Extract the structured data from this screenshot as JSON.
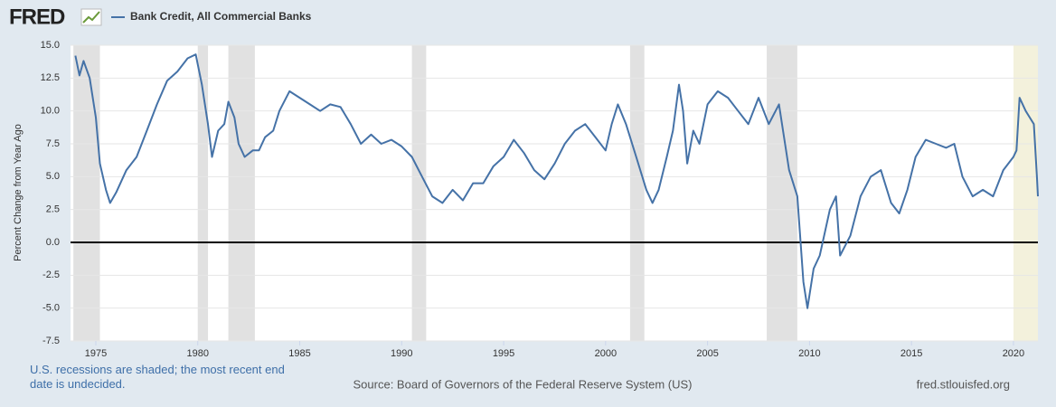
{
  "chart_data": {
    "type": "line",
    "logo": "FRED",
    "title": "Bank Credit, All Commercial Banks",
    "ylabel": "Percent Change from Year Ago",
    "note": "U.S. recessions are shaded; the most recent end date is undecided.",
    "source": "Source: Board of Governors of the Federal Reserve System (US)",
    "site": "fred.stlouisfed.org",
    "x": [
      1974.0,
      1974.2,
      1974.4,
      1974.7,
      1975.0,
      1975.2,
      1975.5,
      1975.7,
      1976.0,
      1976.5,
      1977.0,
      1977.5,
      1978.0,
      1978.5,
      1979.0,
      1979.5,
      1979.9,
      1980.2,
      1980.5,
      1980.7,
      1981.0,
      1981.3,
      1981.5,
      1981.8,
      1982.0,
      1982.3,
      1982.7,
      1983.0,
      1983.3,
      1983.7,
      1984.0,
      1984.5,
      1985.0,
      1985.5,
      1986.0,
      1986.5,
      1987.0,
      1987.5,
      1988.0,
      1988.5,
      1989.0,
      1989.5,
      1990.0,
      1990.5,
      1991.0,
      1991.5,
      1992.0,
      1992.5,
      1993.0,
      1993.5,
      1994.0,
      1994.5,
      1995.0,
      1995.5,
      1996.0,
      1996.5,
      1997.0,
      1997.5,
      1998.0,
      1998.5,
      1999.0,
      1999.5,
      2000.0,
      2000.3,
      2000.6,
      2001.0,
      2001.5,
      2002.0,
      2002.3,
      2002.6,
      2003.0,
      2003.3,
      2003.6,
      2003.8,
      2004.0,
      2004.3,
      2004.6,
      2005.0,
      2005.5,
      2006.0,
      2006.5,
      2007.0,
      2007.5,
      2008.0,
      2008.5,
      2009.0,
      2009.4,
      2009.7,
      2009.9,
      2010.2,
      2010.5,
      2011.0,
      2011.3,
      2011.5,
      2012.0,
      2012.5,
      2013.0,
      2013.5,
      2014.0,
      2014.4,
      2014.8,
      2015.2,
      2015.7,
      2016.2,
      2016.7,
      2017.1,
      2017.5,
      2018.0,
      2018.5,
      2019.0,
      2019.5,
      2020.0,
      2020.15,
      2020.3,
      2020.6,
      2021.0,
      2021.15,
      2021.2
    ],
    "series": [
      {
        "name": "Bank Credit, All Commercial Banks",
        "color": "#4572a7",
        "values": [
          14.2,
          12.7,
          13.8,
          12.5,
          9.5,
          6,
          4,
          3,
          3.8,
          5.5,
          6.5,
          8.5,
          10.5,
          12.3,
          13,
          14,
          14.3,
          12,
          9,
          6.5,
          8.5,
          9,
          10.7,
          9.5,
          7.5,
          6.5,
          7,
          7,
          8,
          8.5,
          10,
          11.5,
          11,
          10.5,
          10,
          10.5,
          10.3,
          9,
          7.5,
          8.2,
          7.5,
          7.8,
          7.3,
          6.5,
          5,
          3.5,
          3,
          4,
          3.2,
          4.5,
          4.5,
          5.8,
          6.5,
          7.8,
          6.8,
          5.5,
          4.8,
          6,
          7.5,
          8.5,
          9,
          8,
          7,
          9,
          10.5,
          9,
          6.5,
          4,
          3,
          4,
          6.5,
          8.5,
          12,
          10,
          6,
          8.5,
          7.5,
          10.5,
          11.5,
          11,
          10,
          9,
          11,
          9,
          10.5,
          5.5,
          3.5,
          -3,
          -5,
          -2,
          -1,
          2.5,
          3.5,
          -1,
          0.5,
          3.5,
          5,
          5.5,
          3,
          2.2,
          4,
          6.5,
          7.8,
          7.5,
          7.2,
          7.5,
          5,
          3.5,
          4,
          3.5,
          5.5,
          6.5,
          7,
          11,
          10,
          9,
          5,
          3.5
        ]
      }
    ],
    "recessions": [
      [
        1973.9,
        1975.2
      ],
      [
        1980.0,
        1980.5
      ],
      [
        1981.5,
        1982.8
      ],
      [
        1990.5,
        1991.2
      ],
      [
        2001.2,
        2001.9
      ],
      [
        2007.9,
        2009.4
      ],
      [
        2020.0,
        2021.2
      ]
    ],
    "recession_color": "#e1e1e1",
    "undecided_color": "#f3f1dc",
    "xlim": [
      1973.76,
      2021.2
    ],
    "xticks": [
      1975,
      1980,
      1985,
      1990,
      1995,
      2000,
      2005,
      2010,
      2015,
      2020
    ],
    "ylim": [
      -7.5,
      15
    ],
    "yticks": [
      {
        "value": -7.5,
        "label": "-7.5"
      },
      {
        "value": -5,
        "label": "-5.0"
      },
      {
        "value": -2.5,
        "label": "-2.5"
      },
      {
        "value": 0,
        "label": "0.0"
      },
      {
        "value": 2.5,
        "label": "2.5"
      },
      {
        "value": 5,
        "label": "5.0"
      },
      {
        "value": 7.5,
        "label": "7.5"
      },
      {
        "value": 10,
        "label": "10.0"
      },
      {
        "value": 12.5,
        "label": "12.5"
      },
      {
        "value": 15,
        "label": "15.0"
      }
    ],
    "grid": true
  }
}
